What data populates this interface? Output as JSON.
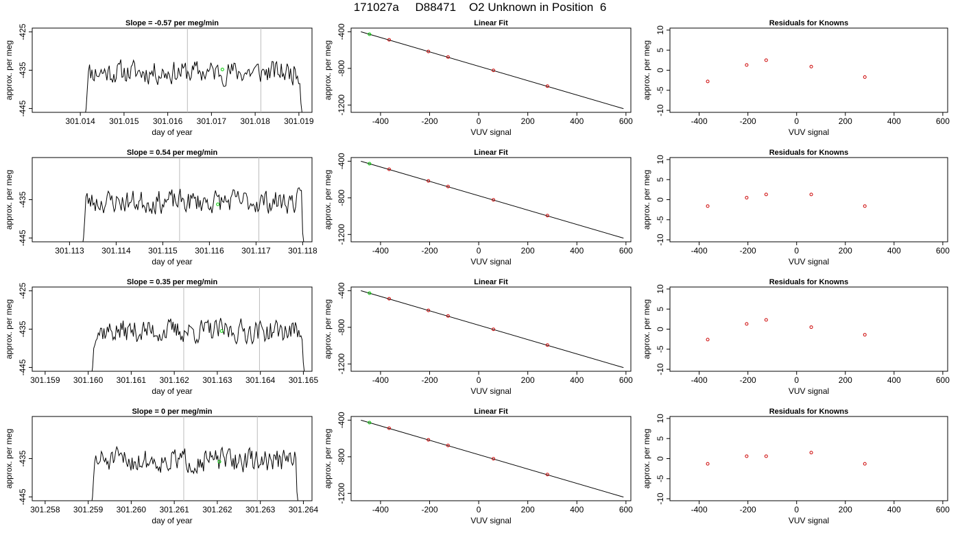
{
  "title": "171027a     D88471    O2 Unknown in Position  6",
  "colors": {
    "trace": "#000000",
    "vline": "#bbbbbb",
    "unknown_point": "#00cc00",
    "known_point": "#cc0000",
    "axis": "#000000"
  },
  "chart_data": [
    {
      "type": "line",
      "title": "Slope =  -0.57  per meg/min",
      "xlabel": "day of year",
      "ylabel": "approx. per meg",
      "xlim": [
        301.0129,
        301.0193
      ],
      "ylim": [
        -446,
        -424
      ],
      "xticks": [
        "301.014",
        "301.015",
        "301.016",
        "301.017",
        "301.018",
        "301.019"
      ],
      "xtick_values": [
        301.014,
        301.015,
        301.016,
        301.017,
        301.018,
        301.019
      ],
      "yticks": [
        "-445",
        "-435",
        "-425"
      ],
      "ytick_values": [
        -445,
        -435,
        -425
      ],
      "trace_start": 301.01408,
      "trace_end": 301.0191,
      "vlines": [
        301.01645,
        301.01813
      ],
      "unknown_point": {
        "x": 301.01725,
        "y": -434.8
      },
      "seed": 11
    },
    {
      "type": "line",
      "title": "Linear Fit",
      "xlabel": "VUV signal",
      "ylabel": "approx. per meg",
      "xlim": [
        -520,
        620
      ],
      "ylim": [
        -1280,
        -360
      ],
      "xticks": [
        "-400",
        "-200",
        "0",
        "200",
        "400",
        "600"
      ],
      "xtick_values": [
        -400,
        -200,
        0,
        200,
        400,
        600
      ],
      "yticks": [
        "-400",
        "-800",
        "-1200"
      ],
      "ytick_values": [
        -400,
        -800,
        -1200
      ],
      "fit_line": {
        "x": [
          -480,
          590
        ],
        "y": [
          -400,
          -1240
        ]
      },
      "known_points": {
        "x": [
          -365,
          -205,
          -125,
          60,
          280
        ],
        "y": [
          -488,
          -615,
          -676,
          -822,
          -994
        ]
      },
      "unknown_point": {
        "x": -445,
        "y": -427
      }
    },
    {
      "type": "scatter",
      "title": "Residuals for Knowns",
      "xlabel": "VUV signal",
      "ylabel": "approx. per meg",
      "xlim": [
        -520,
        620
      ],
      "ylim": [
        -10.5,
        10.5
      ],
      "xticks": [
        "-400",
        "-200",
        "0",
        "200",
        "400",
        "600"
      ],
      "xtick_values": [
        -400,
        -200,
        0,
        200,
        400,
        600
      ],
      "yticks": [
        "-10",
        "-5",
        "0",
        "5",
        "10"
      ],
      "ytick_values": [
        -10,
        -5,
        0,
        5,
        10
      ],
      "x": [
        -365,
        -205,
        -125,
        60,
        280
      ],
      "y": [
        -2.8,
        1.3,
        2.5,
        0.9,
        -1.7
      ]
    },
    {
      "type": "line",
      "title": "Slope =  0.54  per meg/min",
      "xlabel": "day of year",
      "ylabel": "approx. per meg",
      "xlim": [
        301.1122,
        301.1182
      ],
      "ylim": [
        -446,
        -424
      ],
      "xticks": [
        "301.113",
        "301.114",
        "301.115",
        "301.116",
        "301.117",
        "301.118"
      ],
      "xtick_values": [
        301.113,
        301.114,
        301.115,
        301.116,
        301.117,
        301.118
      ],
      "yticks": [
        "-445",
        "-435"
      ],
      "ytick_values": [
        -445,
        -435
      ],
      "trace_start": 301.11325,
      "trace_end": 301.11805,
      "vlines": [
        301.11536,
        301.11706
      ],
      "unknown_point": {
        "x": 301.11618,
        "y": -436.2
      },
      "seed": 23
    },
    {
      "type": "line",
      "title": "Linear Fit",
      "xlabel": "VUV signal",
      "ylabel": "approx. per meg",
      "xlim": [
        -520,
        620
      ],
      "ylim": [
        -1280,
        -360
      ],
      "xticks": [
        "-400",
        "-200",
        "0",
        "200",
        "400",
        "600"
      ],
      "xtick_values": [
        -400,
        -200,
        0,
        200,
        400,
        600
      ],
      "yticks": [
        "-400",
        "-800",
        "-1200"
      ],
      "ytick_values": [
        -400,
        -800,
        -1200
      ],
      "fit_line": {
        "x": [
          -480,
          590
        ],
        "y": [
          -400,
          -1240
        ]
      },
      "known_points": {
        "x": [
          -365,
          -205,
          -125,
          60,
          280
        ],
        "y": [
          -488,
          -615,
          -676,
          -822,
          -994
        ]
      },
      "unknown_point": {
        "x": -445,
        "y": -427
      }
    },
    {
      "type": "scatter",
      "title": "Residuals for Knowns",
      "xlabel": "VUV signal",
      "ylabel": "approx. per meg",
      "xlim": [
        -520,
        620
      ],
      "ylim": [
        -10.5,
        10.5
      ],
      "xticks": [
        "-400",
        "-200",
        "0",
        "200",
        "400",
        "600"
      ],
      "xtick_values": [
        -400,
        -200,
        0,
        200,
        400,
        600
      ],
      "yticks": [
        "-10",
        "-5",
        "0",
        "5",
        "10"
      ],
      "ytick_values": [
        -10,
        -5,
        0,
        5,
        10
      ],
      "x": [
        -365,
        -205,
        -125,
        60,
        280
      ],
      "y": [
        -1.6,
        0.5,
        1.3,
        1.3,
        -1.6
      ]
    },
    {
      "type": "line",
      "title": "Slope =  0.35  per meg/min",
      "xlabel": "day of year",
      "ylabel": "approx. per meg",
      "xlim": [
        301.1587,
        301.1652
      ],
      "ylim": [
        -446,
        -424
      ],
      "xticks": [
        "301.159",
        "301.160",
        "301.161",
        "301.162",
        "301.163",
        "301.164",
        "301.165"
      ],
      "xtick_values": [
        301.159,
        301.16,
        301.161,
        301.162,
        301.163,
        301.164,
        301.165
      ],
      "yticks": [
        "-445",
        "-435",
        "-425"
      ],
      "ytick_values": [
        -445,
        -435,
        -425
      ],
      "trace_start": 301.16005,
      "trace_end": 301.16505,
      "vlines": [
        301.16222,
        301.16398
      ],
      "unknown_point": {
        "x": 301.1631,
        "y": -435.5
      },
      "seed": 37
    },
    {
      "type": "line",
      "title": "Linear Fit",
      "xlabel": "VUV signal",
      "ylabel": "approx. per meg",
      "xlim": [
        -520,
        620
      ],
      "ylim": [
        -1280,
        -360
      ],
      "xticks": [
        "-400",
        "-200",
        "0",
        "200",
        "400",
        "600"
      ],
      "xtick_values": [
        -400,
        -200,
        0,
        200,
        400,
        600
      ],
      "yticks": [
        "-400",
        "-800",
        "-1200"
      ],
      "ytick_values": [
        -400,
        -800,
        -1200
      ],
      "fit_line": {
        "x": [
          -480,
          590
        ],
        "y": [
          -400,
          -1240
        ]
      },
      "known_points": {
        "x": [
          -365,
          -205,
          -125,
          60,
          280
        ],
        "y": [
          -488,
          -615,
          -676,
          -822,
          -994
        ]
      },
      "unknown_point": {
        "x": -445,
        "y": -427
      }
    },
    {
      "type": "scatter",
      "title": "Residuals for Knowns",
      "xlabel": "VUV signal",
      "ylabel": "approx. per meg",
      "xlim": [
        -520,
        620
      ],
      "ylim": [
        -10.5,
        10.5
      ],
      "xticks": [
        "-400",
        "-200",
        "0",
        "200",
        "400",
        "600"
      ],
      "xtick_values": [
        -400,
        -200,
        0,
        200,
        400,
        600
      ],
      "yticks": [
        "-10",
        "-5",
        "0",
        "5",
        "10"
      ],
      "ytick_values": [
        -10,
        -5,
        0,
        5,
        10
      ],
      "x": [
        -365,
        -205,
        -125,
        60,
        280
      ],
      "y": [
        -2.6,
        1.3,
        2.3,
        0.5,
        -1.4
      ]
    },
    {
      "type": "line",
      "title": "Slope =  0  per meg/min",
      "xlabel": "day of year",
      "ylabel": "approx. per meg",
      "xlim": [
        301.2577,
        301.2642
      ],
      "ylim": [
        -446,
        -424
      ],
      "xticks": [
        "301.258",
        "301.259",
        "301.260",
        "301.261",
        "301.262",
        "301.263",
        "301.264"
      ],
      "xtick_values": [
        301.258,
        301.259,
        301.26,
        301.261,
        301.262,
        301.263,
        301.264
      ],
      "yticks": [
        "-445",
        "-435"
      ],
      "ytick_values": [
        -445,
        -435
      ],
      "trace_start": 301.25905,
      "trace_end": 301.2639,
      "vlines": [
        301.26122,
        301.26293
      ],
      "unknown_point": {
        "x": 301.26205,
        "y": -435.8
      },
      "seed": 51
    },
    {
      "type": "line",
      "title": "Linear Fit",
      "xlabel": "VUV signal",
      "ylabel": "approx. per meg",
      "xlim": [
        -520,
        620
      ],
      "ylim": [
        -1280,
        -360
      ],
      "xticks": [
        "-400",
        "-200",
        "0",
        "200",
        "400",
        "600"
      ],
      "xtick_values": [
        -400,
        -200,
        0,
        200,
        400,
        600
      ],
      "yticks": [
        "-400",
        "-800",
        "-1200"
      ],
      "ytick_values": [
        -400,
        -800,
        -1200
      ],
      "fit_line": {
        "x": [
          -480,
          590
        ],
        "y": [
          -400,
          -1240
        ]
      },
      "known_points": {
        "x": [
          -365,
          -205,
          -125,
          60,
          280
        ],
        "y": [
          -488,
          -615,
          -676,
          -822,
          -994
        ]
      },
      "unknown_point": {
        "x": -445,
        "y": -427
      }
    },
    {
      "type": "scatter",
      "title": "Residuals for Knowns",
      "xlabel": "VUV signal",
      "ylabel": "approx. per meg",
      "xlim": [
        -520,
        620
      ],
      "ylim": [
        -10.5,
        10.5
      ],
      "xticks": [
        "-400",
        "-200",
        "0",
        "200",
        "400",
        "600"
      ],
      "xtick_values": [
        -400,
        -200,
        0,
        200,
        400,
        600
      ],
      "yticks": [
        "-10",
        "-5",
        "0",
        "5",
        "10"
      ],
      "ytick_values": [
        -10,
        -5,
        0,
        5,
        10
      ],
      "x": [
        -365,
        -205,
        -125,
        60,
        280
      ],
      "y": [
        -1.3,
        0.6,
        0.6,
        1.5,
        -1.3
      ]
    }
  ]
}
